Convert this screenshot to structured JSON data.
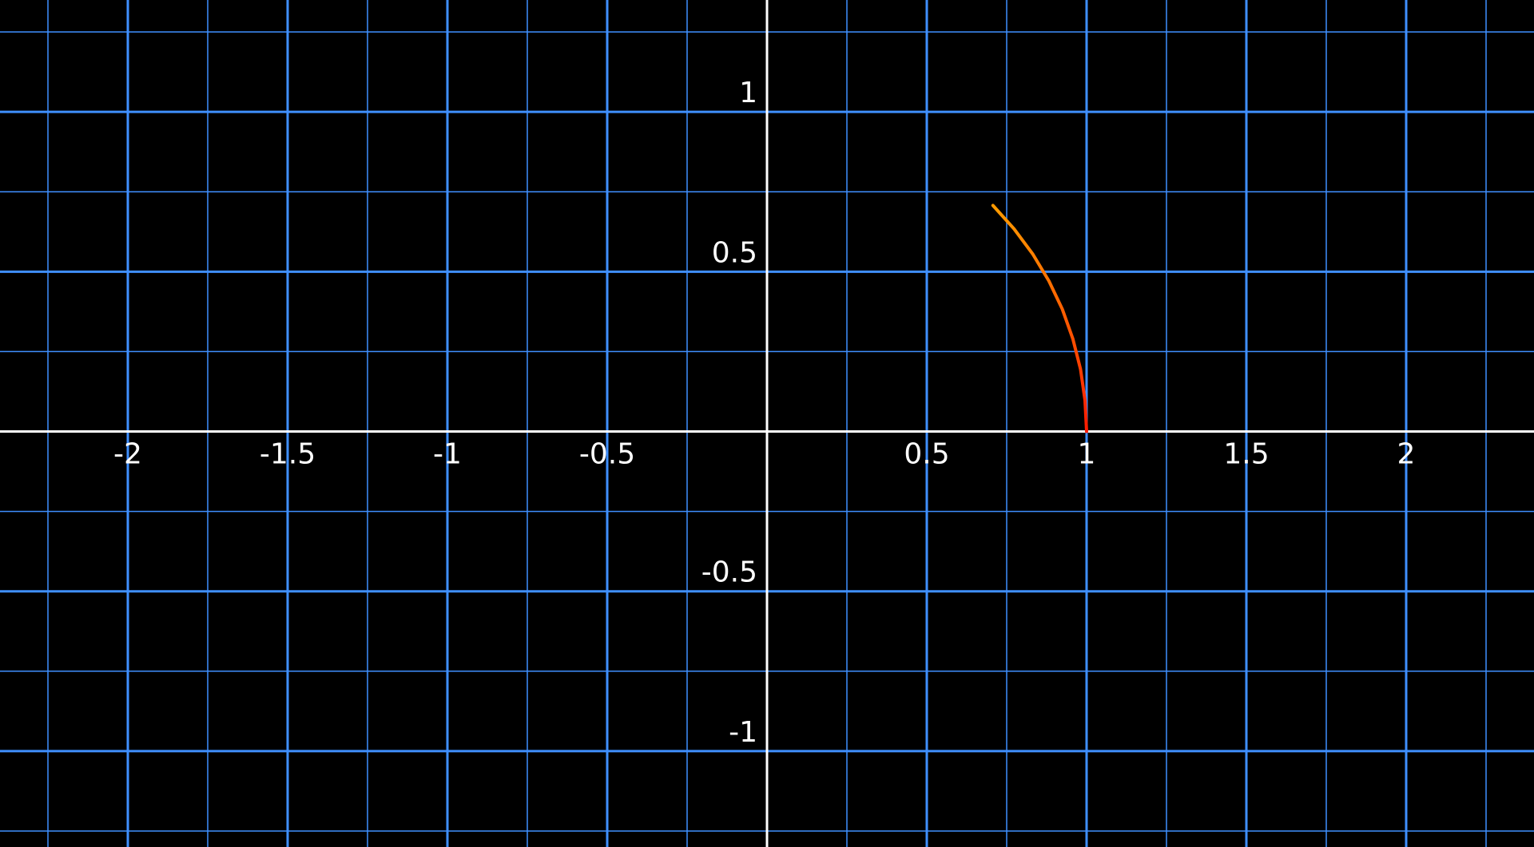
{
  "chart_data": {
    "type": "line",
    "title": "",
    "xlabel": "",
    "ylabel": "",
    "xlim": [
      -2.4,
      2.4
    ],
    "ylim": [
      -1.3,
      1.35
    ],
    "grid": true,
    "legend": "none",
    "colors": {
      "background": "#000000",
      "grid_major": "#3f8fff",
      "grid_minor": "#3f8fff",
      "axis": "#ffffff",
      "label": "#ffffff",
      "curve_start": "#ff1a00",
      "curve_end": "#ff9a00"
    },
    "x_ticks": [
      {
        "value": -2,
        "label": "-2"
      },
      {
        "value": -1.5,
        "label": "-1.5"
      },
      {
        "value": -1,
        "label": "-1"
      },
      {
        "value": -0.5,
        "label": "-0.5"
      },
      {
        "value": 0.5,
        "label": "0.5"
      },
      {
        "value": 1,
        "label": "1"
      },
      {
        "value": 1.5,
        "label": "1.5"
      },
      {
        "value": 2,
        "label": "2"
      }
    ],
    "y_ticks": [
      {
        "value": 1,
        "label": "1"
      },
      {
        "value": 0.5,
        "label": "0.5"
      },
      {
        "value": -0.5,
        "label": "-0.5"
      },
      {
        "value": -1,
        "label": "-1"
      }
    ],
    "series": [
      {
        "x": [
          1.0,
          0.995,
          0.981,
          0.957,
          0.924,
          0.882,
          0.831,
          0.773,
          0.707
        ],
        "y": [
          0.0,
          0.098,
          0.195,
          0.29,
          0.383,
          0.471,
          0.556,
          0.634,
          0.707
        ]
      }
    ]
  }
}
